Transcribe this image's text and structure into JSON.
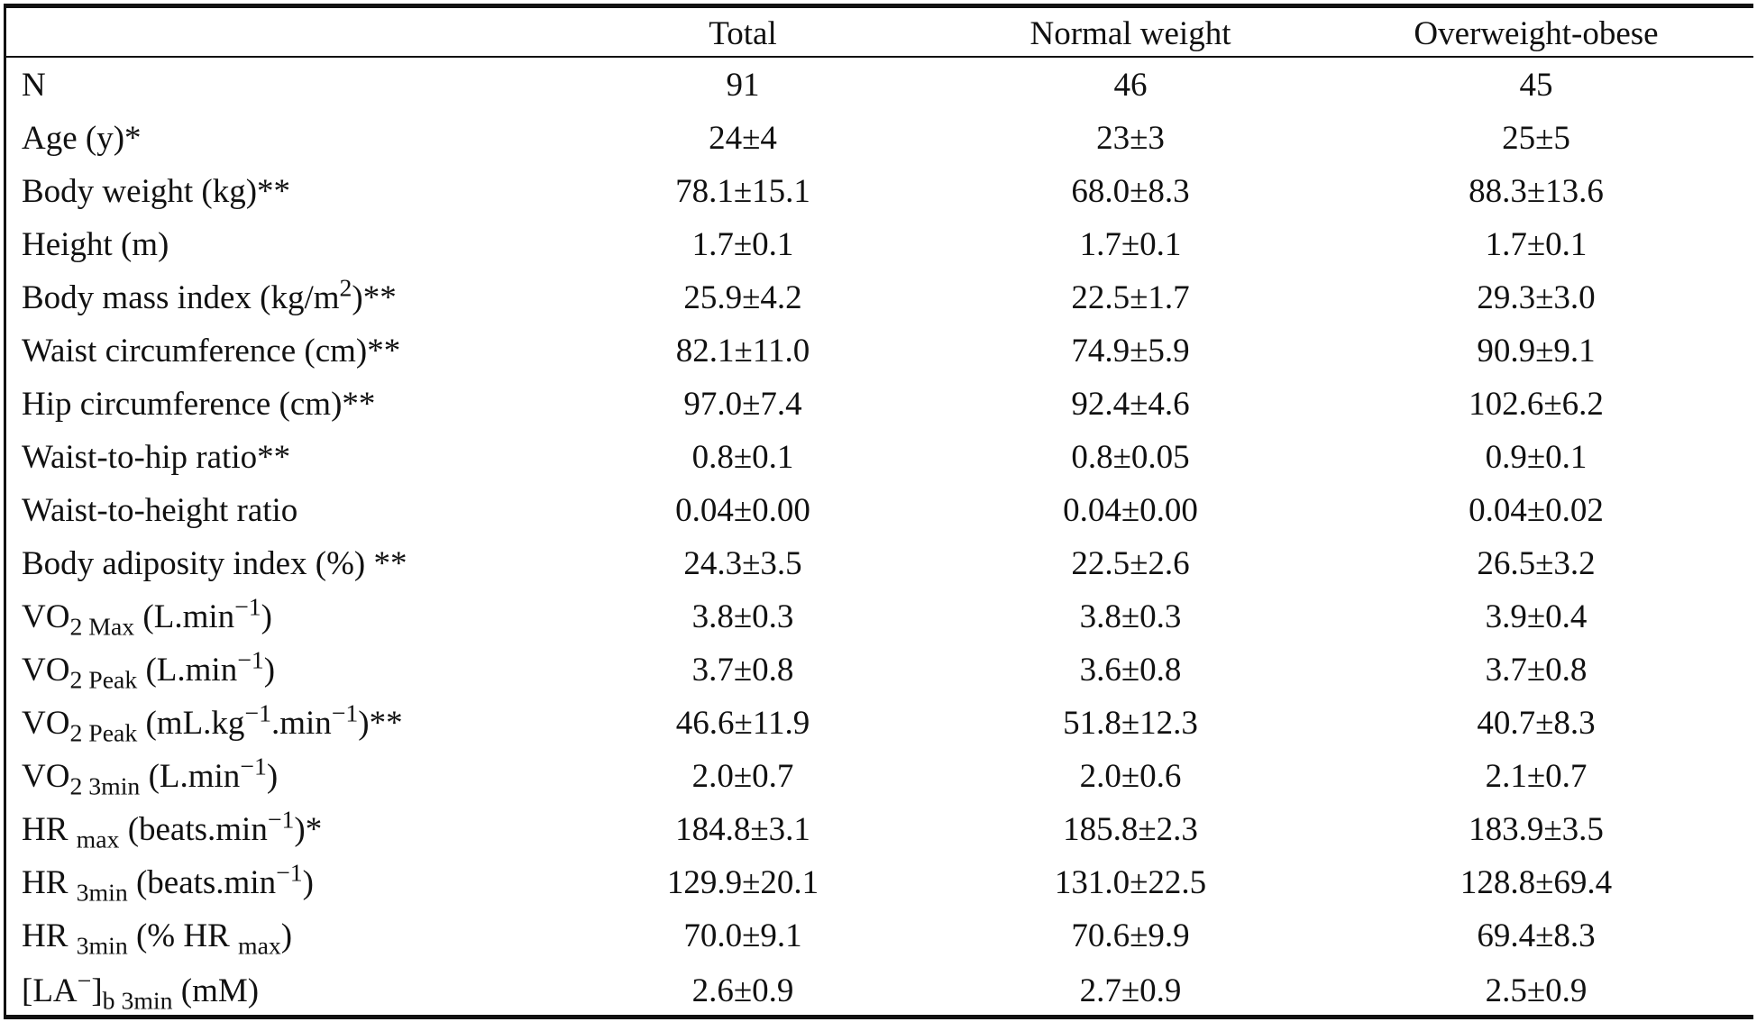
{
  "table": {
    "headers": [
      "",
      "Total",
      "Normal weight",
      "Overweight-obese"
    ],
    "rows": [
      {
        "label": {
          "main": "N"
        },
        "values": [
          "91",
          "46",
          "45"
        ]
      },
      {
        "label": {
          "main": "Age (y)*"
        },
        "values": [
          "24±4",
          "23±3",
          "25±5"
        ]
      },
      {
        "label": {
          "main": "Body weight (kg)**"
        },
        "values": [
          "78.1±15.1",
          "68.0±8.3",
          "88.3±13.6"
        ]
      },
      {
        "label": {
          "main": "Height (m)"
        },
        "values": [
          "1.7±0.1",
          "1.7±0.1",
          "1.7±0.1"
        ]
      },
      {
        "label": {
          "main": "Body mass index (kg/m",
          "sup": "2",
          "tail": ")**"
        },
        "values": [
          "25.9±4.2",
          "22.5±1.7",
          "29.3±3.0"
        ]
      },
      {
        "label": {
          "main": "Waist circumference (cm)**"
        },
        "values": [
          "82.1±11.0",
          "74.9±5.9",
          "90.9±9.1"
        ]
      },
      {
        "label": {
          "main": "Hip circumference (cm)**"
        },
        "values": [
          "97.0±7.4",
          "92.4±4.6",
          "102.6±6.2"
        ]
      },
      {
        "label": {
          "main": "Waist-to-hip ratio**"
        },
        "values": [
          "0.8±0.1",
          "0.8±0.05",
          "0.9±0.1"
        ]
      },
      {
        "label": {
          "main": "Waist-to-height ratio"
        },
        "values": [
          "0.04±0.00",
          "0.04±0.00",
          "0.04±0.02"
        ]
      },
      {
        "label": {
          "main": "Body adiposity index (%) **"
        },
        "values": [
          "24.3±3.5",
          "22.5±2.6",
          "26.5±3.2"
        ]
      },
      {
        "label": {
          "main": "VO",
          "sub": "2 Max",
          "tail": " (L.min",
          "sup2": "−1",
          "tail2": ")"
        },
        "values": [
          "3.8±0.3",
          "3.8±0.3",
          "3.9±0.4"
        ]
      },
      {
        "label": {
          "main": "VO",
          "sub": "2 Peak",
          "tail": " (L.min",
          "sup2": "−1",
          "tail2": ")"
        },
        "values": [
          "3.7±0.8",
          "3.6±0.8",
          "3.7±0.8"
        ]
      },
      {
        "label": {
          "main": "VO",
          "sub": "2 Peak",
          "tail": " (mL.kg",
          "sup2": "−1",
          "tail2": ".min",
          "sup3": "−1",
          "tail3": ")**"
        },
        "values": [
          "46.6±11.9",
          "51.8±12.3",
          "40.7±8.3"
        ]
      },
      {
        "label": {
          "main": "VO",
          "sub": "2 3min",
          "tail": " (L.min",
          "sup2": "−1",
          "tail2": ")"
        },
        "values": [
          "2.0±0.7",
          "2.0±0.6",
          "2.1±0.7"
        ]
      },
      {
        "label": {
          "main": "HR ",
          "sub": "max",
          "tail": " (beats.min",
          "sup2": "−1",
          "tail2": ")*"
        },
        "values": [
          "184.8±3.1",
          "185.8±2.3",
          "183.9±3.5"
        ]
      },
      {
        "label": {
          "main": "HR ",
          "sub": "3min",
          "tail": " (beats.min",
          "sup2": "−1",
          "tail2": ")"
        },
        "values": [
          "129.9±20.1",
          "131.0±22.5",
          "128.8±69.4"
        ]
      },
      {
        "label": {
          "main": "HR ",
          "sub": "3min",
          "tail": " (% HR ",
          "sub2": "max",
          "tail2": ")"
        },
        "values": [
          "70.0±9.1",
          "70.6±9.9",
          "69.4±8.3"
        ]
      },
      {
        "label": {
          "main": "[LA",
          "sup": "−",
          "tail": "]",
          "sub2": "b 3min",
          "tail2": " (mM)"
        },
        "values": [
          "2.6±0.9",
          "2.7±0.9",
          "2.5±0.9"
        ]
      }
    ]
  }
}
